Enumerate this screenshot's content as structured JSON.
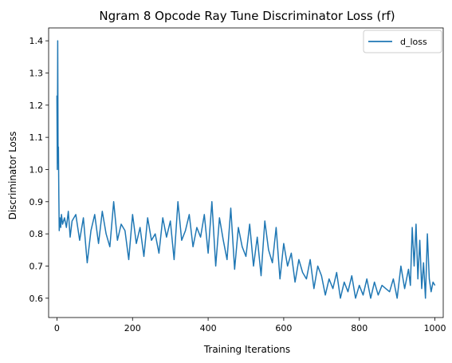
{
  "chart_data": {
    "type": "line",
    "title": "Ngram 8 Opcode Ray Tune Discriminator Loss (rf)",
    "xlabel": "Training Iterations",
    "ylabel": "Discriminator Loss",
    "xlim": [
      -22,
      1022
    ],
    "ylim": [
      0.54,
      1.44
    ],
    "xticks": [
      0,
      200,
      400,
      600,
      800,
      1000
    ],
    "xtick_labels": [
      "0",
      "200",
      "400",
      "600",
      "800",
      "1000"
    ],
    "yticks": [
      0.6,
      0.7,
      0.8,
      0.9,
      1.0,
      1.1,
      1.2,
      1.3,
      1.4
    ],
    "ytick_labels": [
      "0.6",
      "0.7",
      "0.8",
      "0.9",
      "1.0",
      "1.1",
      "1.2",
      "1.3",
      "1.4"
    ],
    "grid": false,
    "legend_position": "top-right",
    "series": [
      {
        "name": "d_loss",
        "color": "#1f77b4",
        "x": [
          0,
          1,
          2,
          3,
          4,
          5,
          6,
          8,
          10,
          12,
          15,
          20,
          25,
          30,
          35,
          40,
          50,
          60,
          70,
          80,
          90,
          100,
          110,
          120,
          130,
          140,
          150,
          160,
          170,
          180,
          190,
          200,
          210,
          220,
          230,
          240,
          250,
          260,
          270,
          280,
          290,
          300,
          310,
          320,
          330,
          340,
          350,
          360,
          370,
          380,
          390,
          400,
          410,
          420,
          430,
          440,
          450,
          460,
          470,
          480,
          490,
          500,
          510,
          520,
          530,
          540,
          550,
          560,
          570,
          580,
          590,
          600,
          610,
          620,
          630,
          640,
          650,
          660,
          670,
          680,
          690,
          700,
          710,
          720,
          730,
          740,
          750,
          760,
          770,
          780,
          790,
          800,
          810,
          820,
          830,
          840,
          850,
          860,
          870,
          880,
          890,
          900,
          910,
          920,
          925,
          930,
          935,
          940,
          945,
          950,
          955,
          960,
          965,
          970,
          975,
          980,
          985,
          990,
          995,
          1000
        ],
        "y": [
          1.23,
          1.0,
          1.4,
          1.02,
          1.07,
          0.92,
          0.81,
          0.85,
          0.82,
          0.86,
          0.83,
          0.85,
          0.82,
          0.87,
          0.79,
          0.84,
          0.86,
          0.78,
          0.85,
          0.71,
          0.81,
          0.86,
          0.77,
          0.87,
          0.8,
          0.76,
          0.9,
          0.78,
          0.83,
          0.81,
          0.72,
          0.86,
          0.77,
          0.82,
          0.73,
          0.85,
          0.78,
          0.8,
          0.74,
          0.85,
          0.79,
          0.84,
          0.72,
          0.9,
          0.78,
          0.81,
          0.86,
          0.76,
          0.82,
          0.79,
          0.86,
          0.74,
          0.9,
          0.7,
          0.85,
          0.78,
          0.72,
          0.88,
          0.69,
          0.82,
          0.76,
          0.73,
          0.83,
          0.7,
          0.79,
          0.67,
          0.84,
          0.75,
          0.71,
          0.82,
          0.66,
          0.77,
          0.7,
          0.74,
          0.65,
          0.72,
          0.68,
          0.66,
          0.72,
          0.63,
          0.7,
          0.67,
          0.61,
          0.66,
          0.63,
          0.68,
          0.6,
          0.65,
          0.62,
          0.67,
          0.6,
          0.64,
          0.61,
          0.66,
          0.6,
          0.65,
          0.61,
          0.64,
          0.63,
          0.62,
          0.66,
          0.6,
          0.7,
          0.63,
          0.66,
          0.69,
          0.64,
          0.82,
          0.7,
          0.83,
          0.66,
          0.78,
          0.63,
          0.71,
          0.6,
          0.8,
          0.66,
          0.62,
          0.65,
          0.64
        ]
      }
    ]
  }
}
